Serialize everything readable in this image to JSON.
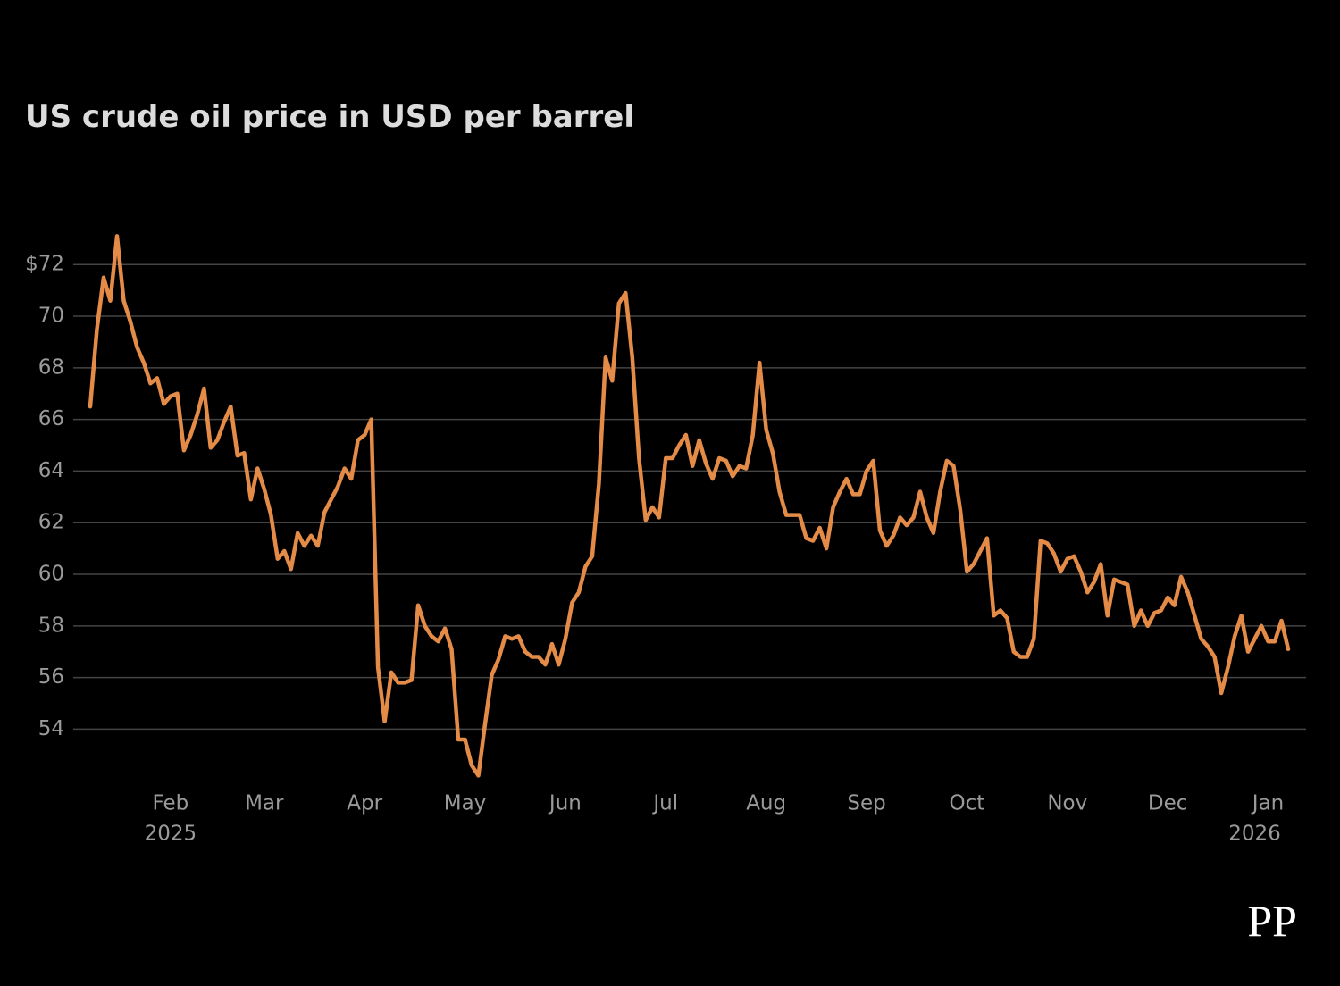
{
  "chart_data": {
    "type": "line",
    "title": "US crude oil price in USD per barrel",
    "logo": "PP",
    "ylim": [
      51.8,
      73.6
    ],
    "yticks": [
      54,
      56,
      58,
      60,
      62,
      64,
      66,
      68,
      70,
      {
        "value": 72,
        "label": "$72"
      }
    ],
    "grid": true,
    "categories": [
      null,
      null,
      null,
      null,
      null,
      null,
      null,
      null,
      null,
      null,
      null,
      null,
      "Feb",
      null,
      null,
      null,
      null,
      null,
      null,
      null,
      null,
      null,
      null,
      null,
      null,
      null,
      "Mar",
      null,
      null,
      null,
      null,
      null,
      null,
      null,
      null,
      null,
      null,
      null,
      null,
      null,
      null,
      "Apr",
      null,
      null,
      null,
      null,
      null,
      null,
      null,
      null,
      null,
      null,
      null,
      null,
      null,
      null,
      "May",
      null,
      null,
      null,
      null,
      null,
      null,
      null,
      null,
      null,
      null,
      null,
      null,
      null,
      null,
      "Jun",
      null,
      null,
      null,
      null,
      null,
      null,
      null,
      null,
      null,
      null,
      null,
      null,
      null,
      null,
      "Jul",
      null,
      null,
      null,
      null,
      null,
      null,
      null,
      null,
      null,
      null,
      null,
      null,
      null,
      null,
      "Aug",
      null,
      null,
      null,
      null,
      null,
      null,
      null,
      null,
      null,
      null,
      null,
      null,
      null,
      null,
      "Sep",
      null,
      null,
      null,
      null,
      null,
      null,
      null,
      null,
      null,
      null,
      null,
      null,
      null,
      null,
      "Oct",
      null,
      null,
      null,
      null,
      null,
      null,
      null,
      null,
      null,
      null,
      null,
      null,
      null,
      null,
      "Nov",
      null,
      null,
      null,
      null,
      null,
      null,
      null,
      null,
      null,
      null,
      null,
      null,
      null,
      null,
      "Dec",
      null,
      null,
      null,
      null,
      null,
      null,
      null,
      null,
      null,
      null,
      null,
      null,
      null,
      null,
      "Jan",
      null,
      null,
      null
    ],
    "years": [
      null,
      null,
      null,
      null,
      null,
      null,
      null,
      null,
      null,
      null,
      null,
      null,
      "2025",
      null,
      null,
      null,
      null,
      null,
      null,
      null,
      null,
      null,
      null,
      null,
      null,
      null,
      null,
      null,
      null,
      null,
      null,
      null,
      null,
      null,
      null,
      null,
      null,
      null,
      null,
      null,
      null,
      null,
      null,
      null,
      null,
      null,
      null,
      null,
      null,
      null,
      null,
      null,
      null,
      null,
      null,
      null,
      null,
      null,
      null,
      null,
      null,
      null,
      null,
      null,
      null,
      null,
      null,
      null,
      null,
      null,
      null,
      null,
      null,
      null,
      null,
      null,
      null,
      null,
      null,
      null,
      null,
      null,
      null,
      null,
      null,
      null,
      null,
      null,
      null,
      null,
      null,
      null,
      null,
      null,
      null,
      null,
      null,
      null,
      null,
      null,
      null,
      null,
      null,
      null,
      null,
      null,
      null,
      null,
      null,
      null,
      null,
      null,
      null,
      null,
      null,
      null,
      null,
      null,
      null,
      null,
      null,
      null,
      null,
      null,
      null,
      null,
      null,
      null,
      null,
      null,
      null,
      null,
      null,
      null,
      null,
      null,
      null,
      null,
      null,
      null,
      null,
      null,
      null,
      null,
      null,
      null,
      null,
      null,
      null,
      null,
      null,
      null,
      null,
      null,
      null,
      null,
      null,
      null,
      null,
      null,
      null,
      null,
      null,
      null,
      null,
      null,
      null,
      null,
      null,
      null,
      null,
      null,
      null,
      null,
      "2026",
      null,
      null,
      null
    ],
    "series": [
      {
        "name": "US crude oil",
        "color": "#e38b47",
        "values": [
          66.5,
          69.5,
          71.5,
          70.6,
          73.1,
          70.6,
          69.8,
          68.8,
          68.2,
          67.4,
          67.6,
          66.6,
          66.9,
          67.0,
          64.8,
          65.4,
          66.2,
          67.2,
          64.9,
          65.2,
          65.9,
          66.5,
          64.6,
          64.7,
          62.9,
          64.1,
          63.3,
          62.3,
          60.6,
          60.9,
          60.2,
          61.6,
          61.1,
          61.5,
          61.1,
          62.4,
          62.9,
          63.4,
          64.1,
          63.7,
          65.2,
          65.4,
          66.0,
          56.4,
          54.3,
          56.2,
          55.8,
          55.8,
          55.9,
          58.8,
          58.0,
          57.6,
          57.4,
          57.9,
          57.1,
          53.6,
          53.6,
          52.6,
          52.2,
          54.2,
          56.1,
          56.7,
          57.6,
          57.5,
          57.6,
          57.0,
          56.8,
          56.8,
          56.5,
          57.3,
          56.5,
          57.5,
          58.9,
          59.3,
          60.3,
          60.7,
          63.5,
          68.4,
          67.5,
          70.5,
          70.9,
          68.4,
          64.5,
          62.1,
          62.6,
          62.2,
          64.5,
          64.5,
          65.0,
          65.4,
          64.2,
          65.2,
          64.3,
          63.7,
          64.5,
          64.4,
          63.8,
          64.2,
          64.1,
          65.4,
          68.2,
          65.6,
          64.7,
          63.2,
          62.3,
          62.3,
          62.3,
          61.4,
          61.3,
          61.8,
          61.0,
          62.6,
          63.2,
          63.7,
          63.1,
          63.1,
          64.0,
          64.4,
          61.7,
          61.1,
          61.5,
          62.2,
          61.9,
          62.2,
          63.2,
          62.2,
          61.6,
          63.2,
          64.4,
          64.2,
          62.5,
          60.1,
          60.4,
          60.9,
          61.4,
          58.4,
          58.6,
          58.3,
          57.0,
          56.8,
          56.8,
          57.5,
          61.3,
          61.2,
          60.8,
          60.1,
          60.6,
          60.7,
          60.1,
          59.3,
          59.7,
          60.4,
          58.4,
          59.8,
          59.7,
          59.6,
          58.0,
          58.6,
          58.0,
          58.5,
          58.6,
          59.1,
          58.8,
          59.9,
          59.3,
          58.4,
          57.5,
          57.2,
          56.8,
          55.4,
          56.4,
          57.6,
          58.4,
          57.0,
          57.5,
          58.0,
          57.4,
          57.4,
          58.2,
          57.1
        ]
      }
    ]
  }
}
